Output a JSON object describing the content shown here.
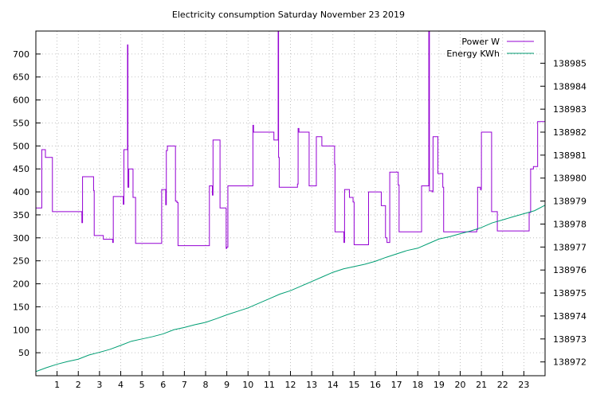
{
  "chart_data": {
    "type": "line",
    "title": "Electricity consumption Saturday November 23 2019",
    "xlabel": "",
    "ylabel": "",
    "y2label": "",
    "xlim": [
      0,
      24
    ],
    "ylim": [
      0,
      750
    ],
    "y2lim": [
      138971.4,
      138986.4
    ],
    "x_ticks": [
      1,
      2,
      3,
      4,
      5,
      6,
      7,
      8,
      9,
      10,
      11,
      12,
      13,
      14,
      15,
      16,
      17,
      18,
      19,
      20,
      21,
      22,
      23
    ],
    "y_ticks": [
      50,
      100,
      150,
      200,
      250,
      300,
      350,
      400,
      450,
      500,
      550,
      600,
      650,
      700
    ],
    "y2_ticks": [
      138972,
      138973,
      138974,
      138975,
      138976,
      138977,
      138978,
      138979,
      138980,
      138981,
      138982,
      138983,
      138984,
      138985
    ],
    "grid": true,
    "legend_position": "top-right",
    "colors": {
      "power": "#9400d3",
      "energy": "#009e73",
      "grid": "#b0b0b0",
      "axis": "#000000"
    },
    "series": [
      {
        "name": "Power W",
        "axis": "left",
        "style": "step",
        "points": [
          [
            0.0,
            365
          ],
          [
            0.25,
            365
          ],
          [
            0.28,
            492
          ],
          [
            0.42,
            492
          ],
          [
            0.45,
            475
          ],
          [
            0.75,
            475
          ],
          [
            0.78,
            357
          ],
          [
            2.15,
            357
          ],
          [
            2.17,
            333
          ],
          [
            2.2,
            433
          ],
          [
            2.7,
            433
          ],
          [
            2.72,
            403
          ],
          [
            2.75,
            305
          ],
          [
            3.15,
            305
          ],
          [
            3.18,
            297
          ],
          [
            3.6,
            297
          ],
          [
            3.62,
            290
          ],
          [
            3.65,
            390
          ],
          [
            4.1,
            390
          ],
          [
            4.12,
            373
          ],
          [
            4.15,
            492
          ],
          [
            4.3,
            492
          ],
          [
            4.32,
            720
          ],
          [
            4.34,
            410
          ],
          [
            4.38,
            450
          ],
          [
            4.55,
            450
          ],
          [
            4.58,
            388
          ],
          [
            4.65,
            388
          ],
          [
            4.7,
            288
          ],
          [
            5.9,
            288
          ],
          [
            5.93,
            405
          ],
          [
            6.1,
            405
          ],
          [
            6.12,
            372
          ],
          [
            6.15,
            490
          ],
          [
            6.2,
            500
          ],
          [
            6.55,
            500
          ],
          [
            6.58,
            380
          ],
          [
            6.65,
            377
          ],
          [
            6.7,
            283
          ],
          [
            8.15,
            283
          ],
          [
            8.18,
            413
          ],
          [
            8.3,
            413
          ],
          [
            8.32,
            393
          ],
          [
            8.35,
            513
          ],
          [
            8.65,
            513
          ],
          [
            8.68,
            365
          ],
          [
            8.95,
            365
          ],
          [
            8.97,
            277
          ],
          [
            9.0,
            280
          ],
          [
            9.05,
            413
          ],
          [
            10.2,
            413
          ],
          [
            10.23,
            545
          ],
          [
            10.26,
            530
          ],
          [
            11.2,
            530
          ],
          [
            11.22,
            513
          ],
          [
            11.4,
            513
          ],
          [
            11.42,
            750
          ],
          [
            11.44,
            475
          ],
          [
            11.47,
            410
          ],
          [
            12.3,
            410
          ],
          [
            12.33,
            417
          ],
          [
            12.36,
            538
          ],
          [
            12.4,
            530
          ],
          [
            12.85,
            530
          ],
          [
            12.88,
            413
          ],
          [
            13.2,
            413
          ],
          [
            13.22,
            520
          ],
          [
            13.45,
            520
          ],
          [
            13.48,
            500
          ],
          [
            14.05,
            500
          ],
          [
            14.08,
            460
          ],
          [
            14.1,
            313
          ],
          [
            14.5,
            313
          ],
          [
            14.52,
            290
          ],
          [
            14.55,
            405
          ],
          [
            14.75,
            405
          ],
          [
            14.78,
            388
          ],
          [
            14.9,
            388
          ],
          [
            14.95,
            378
          ],
          [
            15.0,
            285
          ],
          [
            15.65,
            285
          ],
          [
            15.68,
            400
          ],
          [
            16.25,
            400
          ],
          [
            16.28,
            370
          ],
          [
            16.45,
            370
          ],
          [
            16.48,
            300
          ],
          [
            16.55,
            290
          ],
          [
            16.65,
            290
          ],
          [
            16.68,
            443
          ],
          [
            17.05,
            443
          ],
          [
            17.08,
            415
          ],
          [
            17.12,
            313
          ],
          [
            18.15,
            313
          ],
          [
            18.18,
            413
          ],
          [
            18.5,
            413
          ],
          [
            18.52,
            750
          ],
          [
            18.55,
            402
          ],
          [
            18.7,
            400
          ],
          [
            18.72,
            520
          ],
          [
            18.92,
            520
          ],
          [
            18.95,
            440
          ],
          [
            19.15,
            440
          ],
          [
            19.18,
            410
          ],
          [
            19.22,
            313
          ],
          [
            20.75,
            313
          ],
          [
            20.78,
            318
          ],
          [
            20.82,
            410
          ],
          [
            20.95,
            405
          ],
          [
            21.0,
            530
          ],
          [
            21.45,
            530
          ],
          [
            21.48,
            357
          ],
          [
            21.7,
            357
          ],
          [
            21.75,
            315
          ],
          [
            23.2,
            315
          ],
          [
            23.25,
            355
          ],
          [
            23.32,
            450
          ],
          [
            23.45,
            455
          ],
          [
            23.62,
            455
          ],
          [
            23.65,
            553
          ],
          [
            24.0,
            553
          ]
        ]
      },
      {
        "name": "Energy KWh",
        "axis": "right",
        "style": "line",
        "points": [
          [
            0.0,
            138971.58
          ],
          [
            0.5,
            138971.75
          ],
          [
            1.0,
            138971.9
          ],
          [
            1.5,
            138972.02
          ],
          [
            2.0,
            138972.12
          ],
          [
            2.5,
            138972.3
          ],
          [
            3.0,
            138972.42
          ],
          [
            3.5,
            138972.55
          ],
          [
            4.0,
            138972.72
          ],
          [
            4.5,
            138972.9
          ],
          [
            5.0,
            138973.0
          ],
          [
            5.5,
            138973.1
          ],
          [
            6.0,
            138973.22
          ],
          [
            6.5,
            138973.4
          ],
          [
            7.0,
            138973.5
          ],
          [
            7.5,
            138973.62
          ],
          [
            8.0,
            138973.72
          ],
          [
            8.5,
            138973.88
          ],
          [
            9.0,
            138974.05
          ],
          [
            9.5,
            138974.2
          ],
          [
            10.0,
            138974.35
          ],
          [
            10.5,
            138974.55
          ],
          [
            11.0,
            138974.75
          ],
          [
            11.5,
            138974.95
          ],
          [
            12.0,
            138975.1
          ],
          [
            12.5,
            138975.3
          ],
          [
            13.0,
            138975.5
          ],
          [
            13.5,
            138975.7
          ],
          [
            14.0,
            138975.9
          ],
          [
            14.5,
            138976.05
          ],
          [
            15.0,
            138976.15
          ],
          [
            15.5,
            138976.25
          ],
          [
            16.0,
            138976.38
          ],
          [
            16.5,
            138976.55
          ],
          [
            17.0,
            138976.7
          ],
          [
            17.5,
            138976.85
          ],
          [
            18.0,
            138976.95
          ],
          [
            18.5,
            138977.15
          ],
          [
            19.0,
            138977.35
          ],
          [
            19.5,
            138977.45
          ],
          [
            20.0,
            138977.58
          ],
          [
            20.5,
            138977.7
          ],
          [
            21.0,
            138977.85
          ],
          [
            21.5,
            138978.05
          ],
          [
            22.0,
            138978.18
          ],
          [
            22.5,
            138978.32
          ],
          [
            23.0,
            138978.45
          ],
          [
            23.5,
            138978.58
          ],
          [
            24.0,
            138978.82
          ]
        ]
      }
    ]
  }
}
